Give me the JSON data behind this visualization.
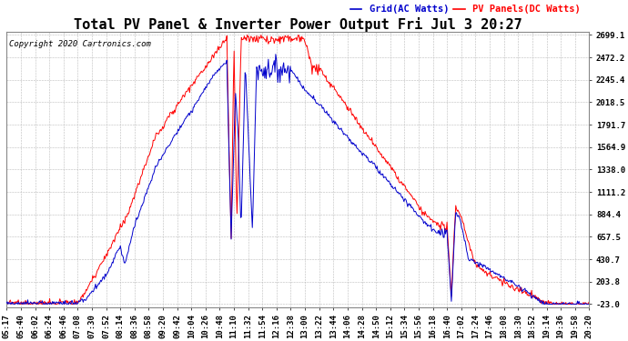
{
  "title": "Total PV Panel & Inverter Power Output Fri Jul 3 20:27",
  "copyright": "Copyright 2020 Cartronics.com",
  "legend_grid": "Grid(AC Watts)",
  "legend_pv": "PV Panels(DC Watts)",
  "yticks": [
    2699.1,
    2472.2,
    2245.4,
    2018.5,
    1791.7,
    1564.9,
    1338.0,
    1111.2,
    884.4,
    657.5,
    430.7,
    203.8,
    -23.0
  ],
  "ymin": -23.0,
  "ymax": 2699.1,
  "grid_color": "#bbbbbb",
  "bg_color": "#ffffff",
  "blue_color": "#0000cc",
  "red_color": "#ff0000",
  "title_fontsize": 11,
  "copyright_fontsize": 6.5,
  "legend_fontsize": 7.5,
  "tick_fontsize": 6.5,
  "xtick_labels": [
    "05:17",
    "05:40",
    "06:02",
    "06:24",
    "06:46",
    "07:08",
    "07:30",
    "07:52",
    "08:14",
    "08:36",
    "08:58",
    "09:20",
    "09:42",
    "10:04",
    "10:26",
    "10:48",
    "11:10",
    "11:32",
    "11:54",
    "12:16",
    "12:38",
    "13:00",
    "13:22",
    "13:44",
    "14:06",
    "14:28",
    "14:50",
    "15:12",
    "15:34",
    "15:56",
    "16:18",
    "16:40",
    "17:02",
    "17:24",
    "17:46",
    "18:08",
    "18:30",
    "18:52",
    "19:14",
    "19:36",
    "19:58",
    "20:20"
  ]
}
